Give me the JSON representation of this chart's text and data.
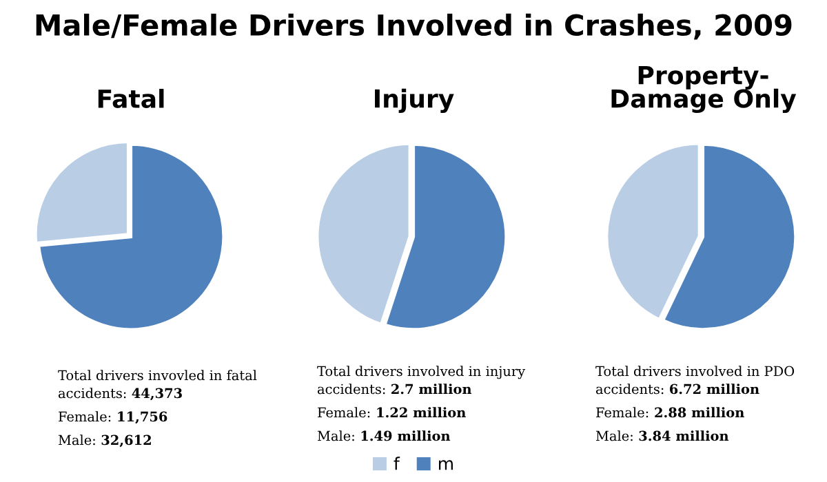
{
  "chart_data": [
    {
      "type": "pie",
      "title": "Fatal",
      "categories": [
        "f",
        "m"
      ],
      "values": [
        26.5,
        73.5
      ],
      "colors": [
        "#b9cde5",
        "#4f81bd"
      ],
      "legend": "bottom",
      "annotations": [
        "Male/Female Drivers Involved in Crashes, 2009",
        "Total drivers invovled in fatal accidents: 44,373",
        "Female: 11,756",
        "Male: 32,612"
      ]
    },
    {
      "type": "pie",
      "title": "Injury",
      "categories": [
        null,
        null
      ],
      "values": [
        45,
        55
      ],
      "colors": [
        "#b9cde5",
        "#4f81bd"
      ],
      "annotations": [
        "Total drivers involved in injury accidents: 2.7 million",
        "Female: 1.22 million",
        "Male: 1.49 million"
      ]
    },
    {
      "type": "pie",
      "title": "Property-Damage Only",
      "categories": [
        null,
        null
      ],
      "values": [
        42.9,
        57.1
      ],
      "colors": [
        "#b9cde5",
        "#4f81bd"
      ],
      "annotations": [
        "Total drivers involved in PDO accidents: 6.72 million",
        "Female: 2.88 million",
        "Male: 3.84 million"
      ]
    }
  ]
}
